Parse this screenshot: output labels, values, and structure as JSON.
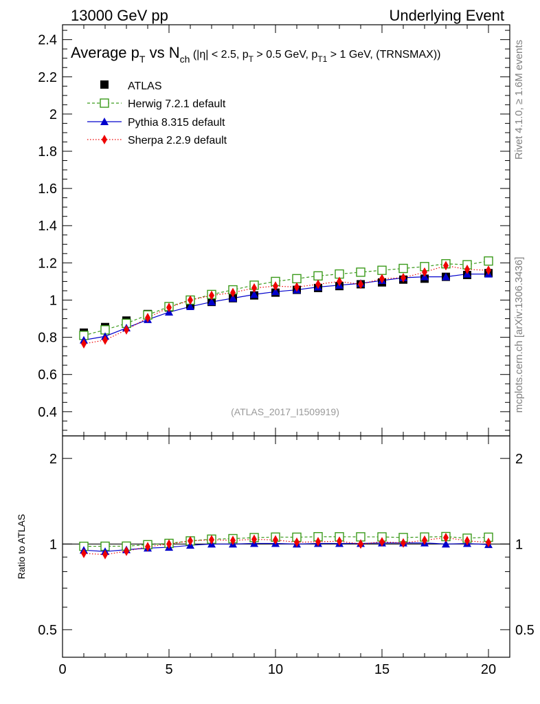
{
  "header": {
    "left": "13000 GeV pp",
    "right": "Underlying Event",
    "side_top": "Rivet 4.1.0, ≥ 1.6M events",
    "side_bottom": "mcplots.cern.ch [arXiv:1306.3436]",
    "analysis_id": "(ATLAS_2017_I1509919)"
  },
  "title": {
    "main": "Average p",
    "main_sub": "T",
    "vs": " vs N",
    "vs_sub": "ch",
    "cuts_a": " (|η| < 2.5, p",
    "cuts_a_sub": "T",
    "cuts_b": " > 0.5 GeV, p",
    "cuts_b_sub": "T1",
    "cuts_c": " > 1 GeV, (TRNSMAX))"
  },
  "colors": {
    "atlas": "#000000",
    "herwig": "#3a9a1a",
    "pythia": "#0000cc",
    "sherpa": "#ee0000",
    "side_text": "#808080"
  },
  "chart_data": {
    "type": "scatter",
    "xlabel": "",
    "ylabel_ratio": "Ratio to ATLAS",
    "xlim": [
      0,
      21
    ],
    "ylim_main": [
      0.27,
      2.48
    ],
    "ylim_ratio": [
      0.4,
      2.4
    ],
    "x_ticks": [
      "0",
      "5",
      "10",
      "15",
      "20"
    ],
    "x_tick_values": [
      0,
      5,
      10,
      15,
      20
    ],
    "y_ticks_main": [
      "0.4",
      "0.6",
      "0.8",
      "1",
      "1.2",
      "1.4",
      "1.6",
      "1.8",
      "2",
      "2.2",
      "2.4"
    ],
    "y_tick_values_main": [
      0.4,
      0.6,
      0.8,
      1.0,
      1.2,
      1.4,
      1.6,
      1.8,
      2.0,
      2.2,
      2.4
    ],
    "y_ticks_ratio": [
      "0.5",
      "1",
      "2"
    ],
    "y_tick_values_ratio": [
      0.5,
      1,
      2
    ],
    "x": [
      1,
      2,
      3,
      4,
      5,
      6,
      7,
      8,
      9,
      10,
      11,
      12,
      13,
      14,
      15,
      16,
      17,
      18,
      19,
      20
    ],
    "series": [
      {
        "name": "ATLAS",
        "key": "atlas",
        "style": "points",
        "values": [
          0.825,
          0.855,
          0.89,
          0.925,
          0.96,
          0.975,
          0.99,
          1.01,
          1.025,
          1.04,
          1.055,
          1.065,
          1.075,
          1.085,
          1.095,
          1.11,
          1.115,
          1.125,
          1.135,
          1.145
        ]
      },
      {
        "name": "Herwig 7.2.1 default",
        "key": "herwig",
        "style": "dashed",
        "values": [
          0.81,
          0.84,
          0.875,
          0.92,
          0.965,
          1.0,
          1.03,
          1.055,
          1.08,
          1.1,
          1.115,
          1.13,
          1.14,
          1.15,
          1.16,
          1.17,
          1.18,
          1.195,
          1.19,
          1.21
        ]
      },
      {
        "name": "Pythia 8.315 default",
        "key": "pythia",
        "style": "solid",
        "values": [
          0.785,
          0.805,
          0.85,
          0.895,
          0.935,
          0.965,
          0.99,
          1.01,
          1.03,
          1.045,
          1.055,
          1.07,
          1.08,
          1.09,
          1.105,
          1.12,
          1.125,
          1.125,
          1.14,
          1.14
        ]
      },
      {
        "name": "Sherpa 2.2.9 default",
        "key": "sherpa",
        "style": "dotted",
        "values": [
          0.765,
          0.785,
          0.84,
          0.905,
          0.96,
          1.0,
          1.025,
          1.04,
          1.065,
          1.075,
          1.07,
          1.085,
          1.1,
          1.085,
          1.115,
          1.12,
          1.15,
          1.185,
          1.165,
          1.16
        ]
      }
    ],
    "legend_position": "top-left"
  }
}
